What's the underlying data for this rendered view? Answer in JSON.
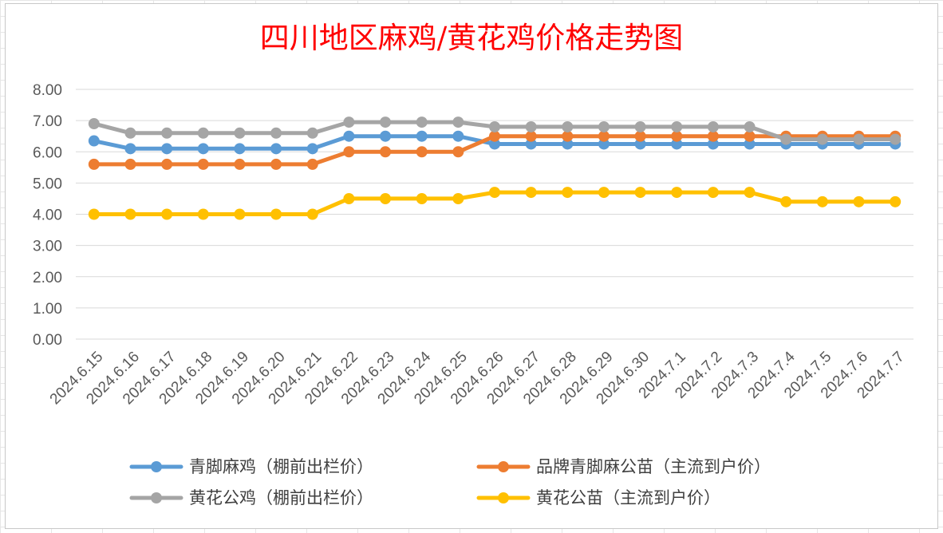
{
  "chart_data": {
    "type": "line",
    "title": "四川地区麻鸡/黄花鸡价格走势图",
    "categories": [
      "2024.6.15",
      "2024.6.16",
      "2024.6.17",
      "2024.6.18",
      "2024.6.19",
      "2024.6.20",
      "2024.6.21",
      "2024.6.22",
      "2024.6.23",
      "2024.6.24",
      "2024.6.25",
      "2024.6.26",
      "2024.6.27",
      "2024.6.28",
      "2024.6.29",
      "2024.6.30",
      "2024.7.1",
      "2024.7.2",
      "2024.7.3",
      "2024.7.4",
      "2024.7.5",
      "2024.7.6",
      "2024.7.7"
    ],
    "ylim": [
      0,
      8
    ],
    "ytick_labels": [
      "0.00",
      "1.00",
      "2.00",
      "3.00",
      "4.00",
      "5.00",
      "6.00",
      "7.00",
      "8.00"
    ],
    "grid": true,
    "legend_position": "bottom",
    "series": [
      {
        "name": "青脚麻鸡（棚前出栏价）",
        "color": "#5b9bd5",
        "values": [
          6.35,
          6.1,
          6.1,
          6.1,
          6.1,
          6.1,
          6.1,
          6.5,
          6.5,
          6.5,
          6.5,
          6.25,
          6.25,
          6.25,
          6.25,
          6.25,
          6.25,
          6.25,
          6.25,
          6.25,
          6.25,
          6.25,
          6.25
        ]
      },
      {
        "name": "品牌青脚麻公苗（主流到户价）",
        "color": "#ed7d31",
        "values": [
          5.6,
          5.6,
          5.6,
          5.6,
          5.6,
          5.6,
          5.6,
          6.0,
          6.0,
          6.0,
          6.0,
          6.5,
          6.5,
          6.5,
          6.5,
          6.5,
          6.5,
          6.5,
          6.5,
          6.5,
          6.5,
          6.5,
          6.5
        ]
      },
      {
        "name": "黄花公鸡（棚前出栏价）",
        "color": "#a5a5a5",
        "values": [
          6.9,
          6.6,
          6.6,
          6.6,
          6.6,
          6.6,
          6.6,
          6.95,
          6.95,
          6.95,
          6.95,
          6.8,
          6.8,
          6.8,
          6.8,
          6.8,
          6.8,
          6.8,
          6.8,
          6.4,
          6.4,
          6.4,
          6.4
        ]
      },
      {
        "name": "黄花公苗（主流到户价）",
        "color": "#ffc000",
        "values": [
          4.0,
          4.0,
          4.0,
          4.0,
          4.0,
          4.0,
          4.0,
          4.5,
          4.5,
          4.5,
          4.5,
          4.7,
          4.7,
          4.7,
          4.7,
          4.7,
          4.7,
          4.7,
          4.7,
          4.4,
          4.4,
          4.4,
          4.4
        ]
      }
    ]
  }
}
